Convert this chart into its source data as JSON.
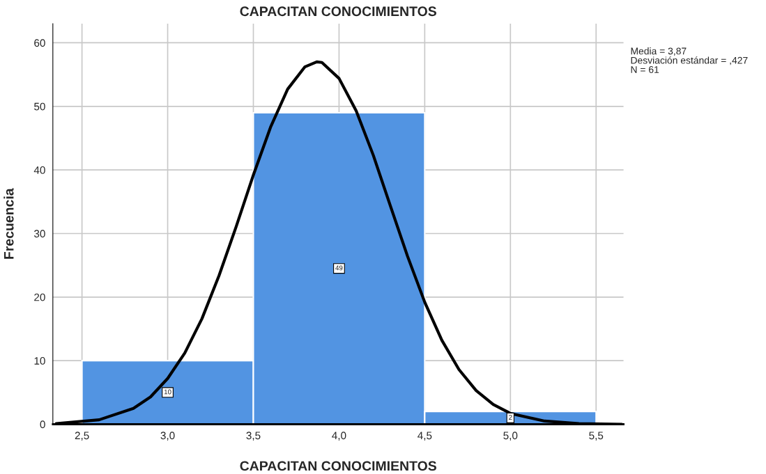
{
  "chart_data": {
    "type": "histogram",
    "title": "CAPACITAN CONOCIMIENTOS",
    "xlabel": "CAPACITAN CONOCIMIENTOS",
    "ylabel": "Frecuencia",
    "series": [
      {
        "bins": [
          2.5,
          3.5,
          4.5,
          5.5
        ],
        "values": [
          10,
          49,
          2
        ],
        "color": "#5294e2",
        "value_labels": [
          "10",
          "49",
          "2"
        ]
      },
      {
        "type": "line",
        "color": "#000000",
        "x": [
          2.35,
          2.6,
          2.8,
          2.9,
          3.0,
          3.1,
          3.2,
          3.3,
          3.4,
          3.5,
          3.6,
          3.7,
          3.8,
          3.87,
          3.9,
          4.0,
          4.1,
          4.2,
          4.3,
          4.4,
          4.5,
          4.6,
          4.7,
          4.8,
          4.9,
          5.0,
          5.2,
          5.4,
          5.65
        ],
        "values": [
          0.1,
          0.7,
          2.5,
          4.3,
          7.2,
          11.2,
          16.6,
          23.4,
          31.1,
          39.2,
          46.7,
          52.7,
          56.2,
          57.0,
          56.9,
          54.4,
          49.3,
          42.3,
          34.3,
          26.4,
          19.2,
          13.2,
          8.6,
          5.3,
          3.1,
          1.7,
          0.5,
          0.1,
          0.0
        ]
      }
    ],
    "annotations": [
      "Media = 3,87",
      "Desviación estándar = ,427",
      "N = 61"
    ],
    "xlim": [
      2.33,
      5.66
    ],
    "ylim": [
      0,
      63
    ],
    "xticks": [
      {
        "value": 2.5,
        "label": "2,5"
      },
      {
        "value": 3.0,
        "label": "3,0"
      },
      {
        "value": 3.5,
        "label": "3,5"
      },
      {
        "value": 4.0,
        "label": "4,0"
      },
      {
        "value": 4.5,
        "label": "4,5"
      },
      {
        "value": 5.0,
        "label": "5,0"
      },
      {
        "value": 5.5,
        "label": "5,5"
      }
    ],
    "yticks": [
      0,
      10,
      20,
      30,
      40,
      50,
      60
    ],
    "grid": true
  }
}
